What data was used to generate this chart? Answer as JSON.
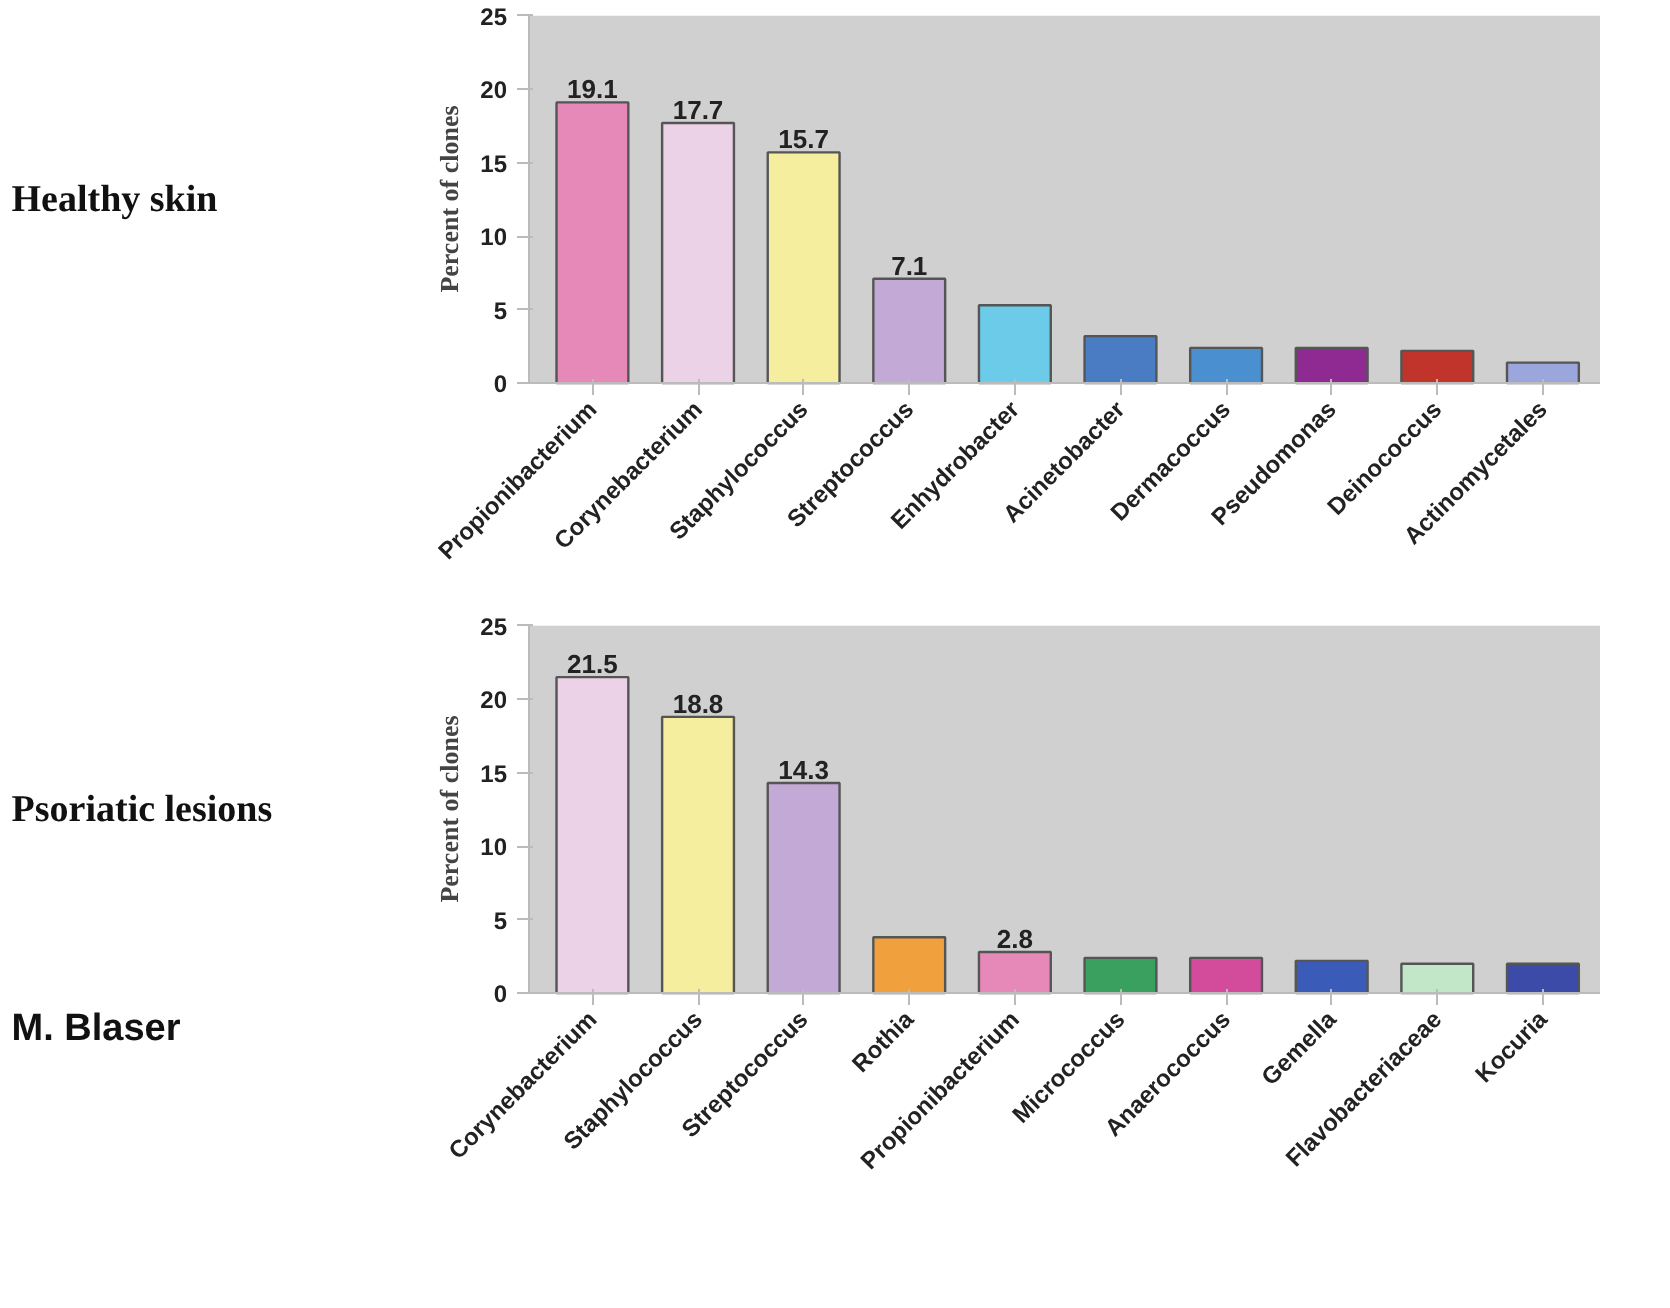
{
  "chart_data": [
    {
      "type": "bar",
      "title": "Healthy skin",
      "ylabel": "Percent of clones",
      "categories": [
        "Propionibacterium",
        "Corynebacterium",
        "Staphylococcus",
        "Streptococcus",
        "Enhydrobacter",
        "Acinetobacter",
        "Dermacoccus",
        "Pseudomonas",
        "Deinococcus",
        "Actinomycetales"
      ],
      "values": [
        19.1,
        17.7,
        15.7,
        7.1,
        5.3,
        3.2,
        2.4,
        2.4,
        2.2,
        1.4
      ],
      "colors": [
        "#e688b8",
        "#ecd2e6",
        "#f5ee9e",
        "#c2a9d6",
        "#6ccbe8",
        "#4a7cc4",
        "#4a90d0",
        "#8e2a92",
        "#c0342c",
        "#9aa6dc"
      ],
      "value_labels": [
        "19.1",
        "17.7",
        "15.7",
        "7.1",
        null,
        null,
        null,
        null,
        null,
        null
      ],
      "ylim": [
        0,
        25
      ],
      "yticks": [
        0,
        5,
        10,
        15,
        20,
        25
      ]
    },
    {
      "type": "bar",
      "title": "Psoriatic lesions",
      "ylabel": "Percent of clones",
      "categories": [
        "Corynebacterium",
        "Staphylococcus",
        "Streptococcus",
        "Rothia",
        "Propionibacterium",
        "Micrococcus",
        "Anaerococcus",
        "Gemella",
        "Flavobacteriaceae",
        "Kocuria"
      ],
      "values": [
        21.5,
        18.8,
        14.3,
        3.8,
        2.8,
        2.4,
        2.4,
        2.2,
        2.0,
        2.0
      ],
      "colors": [
        "#ecd2e6",
        "#f5ee9e",
        "#c2a9d6",
        "#f0a03c",
        "#e688b8",
        "#3aa060",
        "#d34c9c",
        "#3a5cb8",
        "#c2e6c8",
        "#3c4aa8"
      ],
      "value_labels": [
        "21.5",
        "18.8",
        "14.3",
        null,
        "2.8",
        null,
        null,
        null,
        null,
        null
      ],
      "ylim": [
        0,
        25
      ],
      "yticks": [
        0,
        5,
        10,
        15,
        20,
        25
      ],
      "annotations": [
        "M. Blaser"
      ]
    }
  ]
}
